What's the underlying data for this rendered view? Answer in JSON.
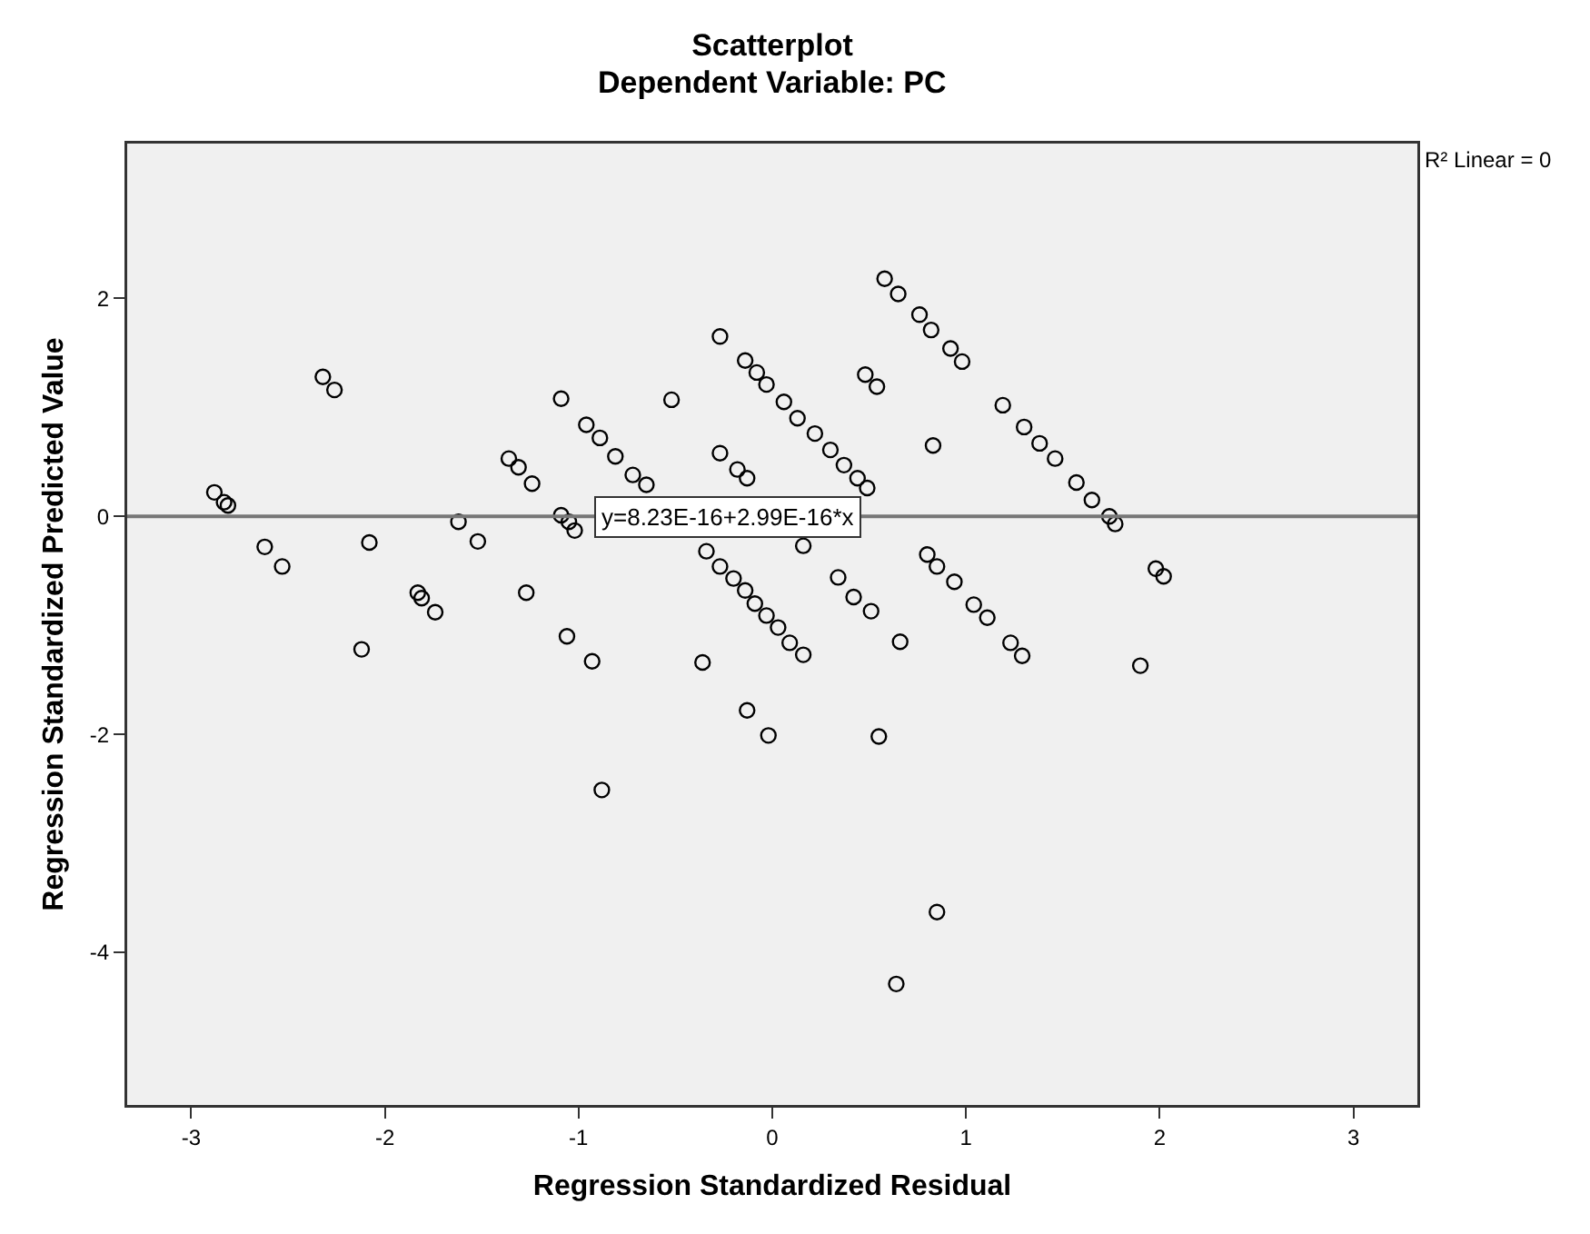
{
  "chart_data": {
    "type": "scatter",
    "title": "Scatterplot",
    "subtitle": "Dependent Variable: PC",
    "xlabel": "Regression Standardized Residual",
    "ylabel": "Regression Standardized Predicted Value",
    "xlim": [
      -3.33,
      3.33
    ],
    "ylim": [
      -5.4,
      3.42
    ],
    "xticks": [
      -3,
      -2,
      -1,
      0,
      1,
      2,
      3
    ],
    "yticks": [
      -4,
      -2,
      0,
      2
    ],
    "grid": false,
    "marker": "circle",
    "annotations": [
      "R² Linear = 0",
      {
        "text": "y=8.23E-16+2.99E-16*x",
        "x": -0.23,
        "y": 0
      }
    ],
    "series": [
      {
        "color": "#000000",
        "x": [
          -2.88,
          -2.83,
          -2.81,
          -2.32,
          -2.26,
          -2.62,
          -2.53,
          -2.08,
          -2.12,
          -1.83,
          -1.81,
          -1.74,
          -1.62,
          -1.52,
          -1.27,
          -1.36,
          -1.31,
          -1.24,
          -1.09,
          -1.09,
          -1.05,
          -1.02,
          -1.06,
          -0.96,
          -0.89,
          -0.81,
          -0.72,
          -0.65,
          -0.52,
          -0.27,
          -0.18,
          -0.13,
          -0.93,
          -0.36,
          -0.13,
          -0.02,
          -0.88,
          -0.27,
          -0.14,
          -0.08,
          -0.03,
          0.06,
          0.13,
          0.22,
          0.3,
          0.37,
          0.44,
          0.49,
          0.16,
          -0.34,
          -0.27,
          -0.2,
          -0.14,
          -0.09,
          -0.03,
          0.03,
          0.09,
          0.16,
          0.34,
          0.42,
          0.51,
          0.58,
          0.65,
          0.76,
          0.82,
          0.92,
          0.98,
          0.48,
          0.54,
          0.83,
          1.19,
          1.3,
          1.38,
          1.46,
          1.57,
          1.65,
          1.74,
          1.77,
          0.8,
          0.85,
          0.94,
          1.04,
          1.11,
          1.23,
          1.29,
          0.66,
          0.55,
          1.98,
          2.02,
          1.9,
          0.85,
          0.64
        ],
        "values": [
          0.22,
          0.13,
          0.1,
          1.28,
          1.16,
          -0.28,
          -0.46,
          -0.24,
          -1.22,
          -0.7,
          -0.75,
          -0.88,
          -0.05,
          -0.23,
          -0.7,
          0.53,
          0.45,
          0.3,
          1.08,
          0.01,
          -0.05,
          -0.13,
          -1.1,
          0.84,
          0.72,
          0.55,
          0.38,
          0.29,
          1.07,
          0.58,
          0.43,
          0.35,
          -1.33,
          -1.34,
          -1.78,
          -2.01,
          -2.51,
          1.65,
          1.43,
          1.32,
          1.21,
          1.05,
          0.9,
          0.76,
          0.61,
          0.47,
          0.35,
          0.26,
          -0.27,
          -0.32,
          -0.46,
          -0.57,
          -0.68,
          -0.8,
          -0.91,
          -1.02,
          -1.16,
          -1.27,
          -0.56,
          -0.74,
          -0.87,
          2.18,
          2.04,
          1.85,
          1.71,
          1.54,
          1.42,
          1.3,
          1.19,
          0.65,
          1.02,
          0.82,
          0.67,
          0.53,
          0.31,
          0.15,
          0.0,
          -0.07,
          -0.35,
          -0.46,
          -0.6,
          -0.81,
          -0.93,
          -1.16,
          -1.28,
          -1.15,
          -2.02,
          -0.48,
          -0.55,
          -1.37,
          -3.63,
          -4.29
        ]
      },
      {
        "type": "line",
        "color": "#777777",
        "line_style": "solid",
        "marker": "none",
        "x": [
          -3.33,
          3.33
        ],
        "values": [
          0,
          0
        ]
      }
    ]
  }
}
